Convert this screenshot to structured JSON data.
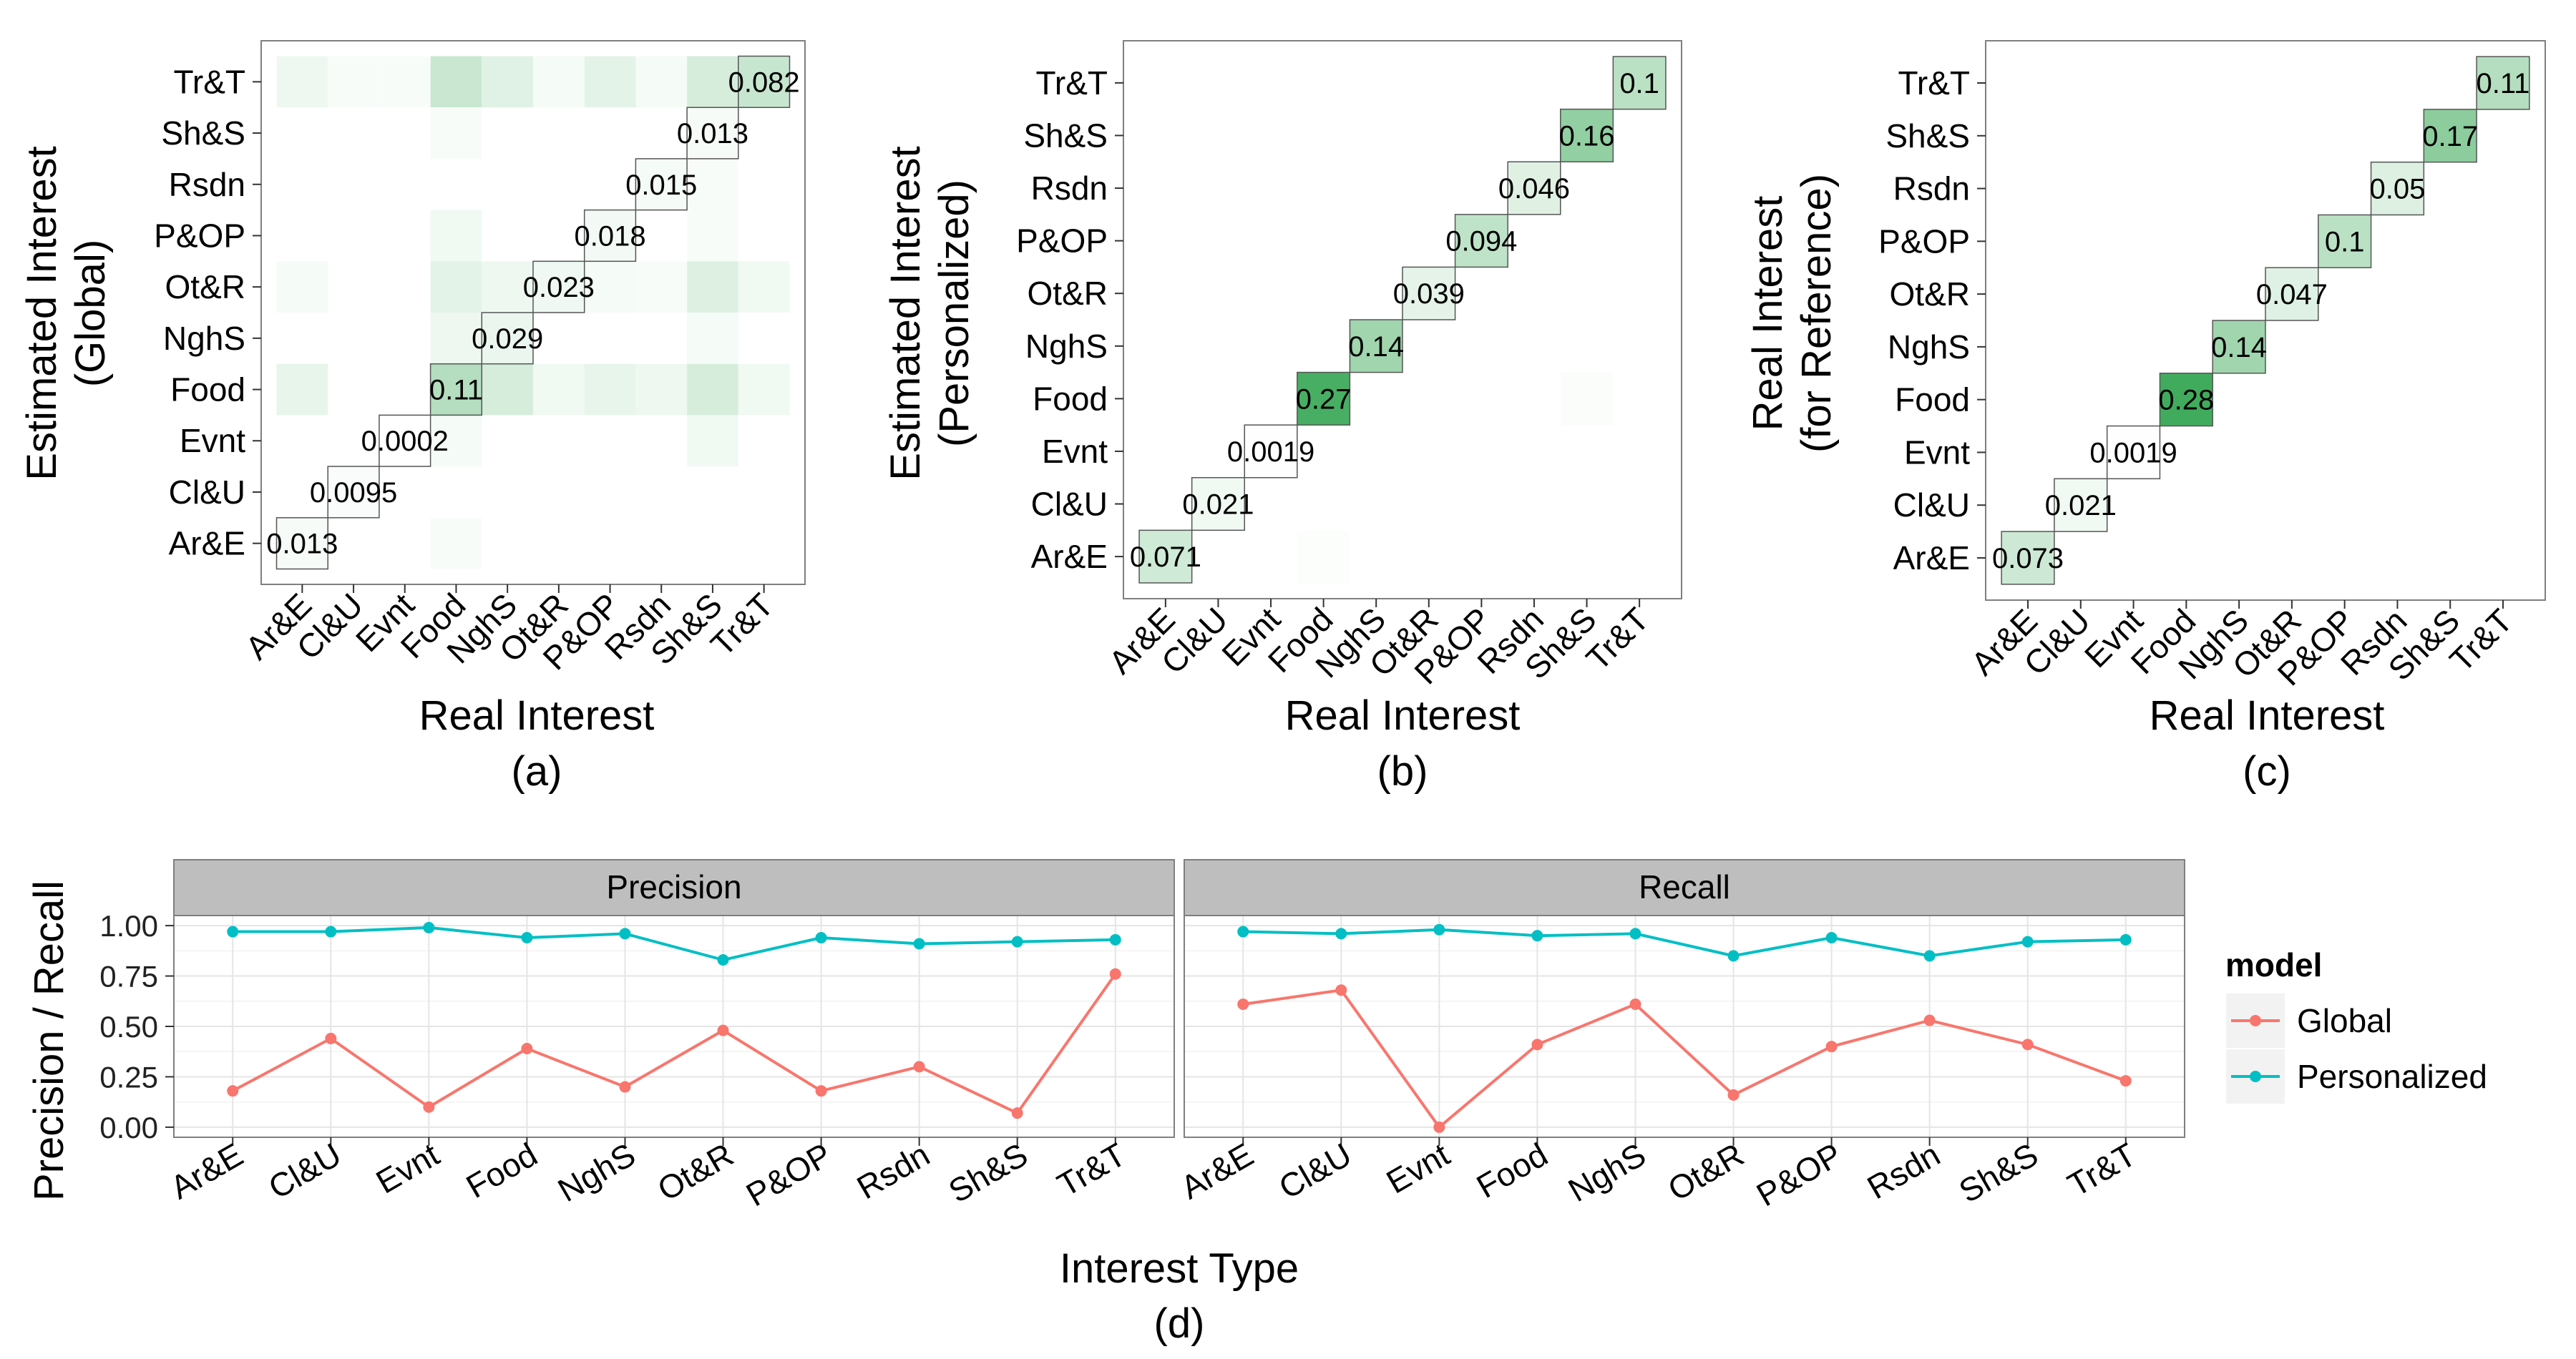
{
  "labels": {
    "a_ylabel_line1": "Estimated Interest",
    "a_ylabel_line2": "(Global)",
    "b_ylabel_line1": "Estimated Interest",
    "b_ylabel_line2": "(Personalized)",
    "c_ylabel_line1": "Real Interest",
    "c_ylabel_line2": "(for Reference)",
    "heatmap_xlabel": "Real Interest",
    "panel_a": "(a)",
    "panel_b": "(b)",
    "panel_c": "(c)",
    "panel_d": "(d)",
    "d_ylabel": "Precision / Recall",
    "d_xlabel": "Interest Type",
    "facet_precision": "Precision",
    "facet_recall": "Recall",
    "legend_title": "model"
  },
  "colors": {
    "global": "#F8766D",
    "personalized": "#00BFC4",
    "heat_low": "#FFFFFF",
    "heat_high": "#41AB5D",
    "strip_bg": "#BEBEBE"
  },
  "chart_data": [
    {
      "type": "heatmap",
      "panel": "(a)",
      "xlabel": "Real Interest",
      "ylabel": "Estimated Interest (Global)",
      "categories": [
        "Ar&E",
        "Cl&U",
        "Evnt",
        "Food",
        "NghS",
        "Ot&R",
        "P&OP",
        "Rsdn",
        "Sh&S",
        "Tr&T"
      ],
      "diagonal_labels": [
        "0.013",
        "0.0095",
        "0.0002",
        "0.11",
        "0.029",
        "0.023",
        "0.018",
        "0.015",
        "0.013",
        "0.082"
      ],
      "diagonal_values": [
        0.013,
        0.0095,
        0.0002,
        0.11,
        0.029,
        0.023,
        0.018,
        0.015,
        0.013,
        0.082
      ],
      "off_diagonal": [
        {
          "x": "Food",
          "y": "Tr&T",
          "value": 0.08
        },
        {
          "x": "NghS",
          "y": "Tr&T",
          "value": 0.045
        },
        {
          "x": "P&OP",
          "y": "Tr&T",
          "value": 0.04
        },
        {
          "x": "Ar&E",
          "y": "Tr&T",
          "value": 0.025
        },
        {
          "x": "Sh&S",
          "y": "Tr&T",
          "value": 0.06
        },
        {
          "x": "Ot&R",
          "y": "Tr&T",
          "value": 0.015
        },
        {
          "x": "Rsdn",
          "y": "Tr&T",
          "value": 0.015
        },
        {
          "x": "Cl&U",
          "y": "Tr&T",
          "value": 0.01
        },
        {
          "x": "Evnt",
          "y": "Tr&T",
          "value": 0.01
        },
        {
          "x": "Ar&E",
          "y": "Food",
          "value": 0.035
        },
        {
          "x": "NghS",
          "y": "Food",
          "value": 0.06
        },
        {
          "x": "Sh&S",
          "y": "Food",
          "value": 0.06
        },
        {
          "x": "P&OP",
          "y": "Food",
          "value": 0.035
        },
        {
          "x": "Ot&R",
          "y": "Food",
          "value": 0.02
        },
        {
          "x": "Rsdn",
          "y": "Food",
          "value": 0.025
        },
        {
          "x": "Tr&T",
          "y": "Food",
          "value": 0.02
        },
        {
          "x": "Food",
          "y": "Ot&R",
          "value": 0.04
        },
        {
          "x": "NghS",
          "y": "Ot&R",
          "value": 0.025
        },
        {
          "x": "Sh&S",
          "y": "Ot&R",
          "value": 0.05
        },
        {
          "x": "Tr&T",
          "y": "Ot&R",
          "value": 0.02
        },
        {
          "x": "P&OP",
          "y": "Ot&R",
          "value": 0.015
        },
        {
          "x": "Rsdn",
          "y": "Ot&R",
          "value": 0.01
        },
        {
          "x": "Ar&E",
          "y": "Ot&R",
          "value": 0.015
        },
        {
          "x": "Food",
          "y": "NghS",
          "value": 0.025
        },
        {
          "x": "Sh&S",
          "y": "NghS",
          "value": 0.015
        },
        {
          "x": "Food",
          "y": "P&OP",
          "value": 0.02
        },
        {
          "x": "Food",
          "y": "Evnt",
          "value": 0.015
        },
        {
          "x": "Sh&S",
          "y": "Evnt",
          "value": 0.02
        },
        {
          "x": "Sh&S",
          "y": "P&OP",
          "value": 0.01
        },
        {
          "x": "Sh&S",
          "y": "Rsdn",
          "value": 0.01
        },
        {
          "x": "Food",
          "y": "Ar&E",
          "value": 0.01
        },
        {
          "x": "Food",
          "y": "Sh&S",
          "value": 0.01
        }
      ]
    },
    {
      "type": "heatmap",
      "panel": "(b)",
      "xlabel": "Real Interest",
      "ylabel": "Estimated Interest (Personalized)",
      "categories": [
        "Ar&E",
        "Cl&U",
        "Evnt",
        "Food",
        "NghS",
        "Ot&R",
        "P&OP",
        "Rsdn",
        "Sh&S",
        "Tr&T"
      ],
      "diagonal_labels": [
        "0.071",
        "0.021",
        "0.0019",
        "0.27",
        "0.14",
        "0.039",
        "0.094",
        "0.046",
        "0.16",
        "0.1"
      ],
      "diagonal_values": [
        0.071,
        0.021,
        0.0019,
        0.27,
        0.14,
        0.039,
        0.094,
        0.046,
        0.16,
        0.1
      ],
      "off_diagonal": [
        {
          "x": "Sh&S",
          "y": "Food",
          "value": 0.008
        },
        {
          "x": "Food",
          "y": "Ar&E",
          "value": 0.005
        }
      ]
    },
    {
      "type": "heatmap",
      "panel": "(c)",
      "xlabel": "Real Interest",
      "ylabel": "Real Interest (for Reference)",
      "categories": [
        "Ar&E",
        "Cl&U",
        "Evnt",
        "Food",
        "NghS",
        "Ot&R",
        "P&OP",
        "Rsdn",
        "Sh&S",
        "Tr&T"
      ],
      "diagonal_labels": [
        "0.073",
        "0.021",
        "0.0019",
        "0.28",
        "0.14",
        "0.047",
        "0.1",
        "0.05",
        "0.17",
        "0.11"
      ],
      "diagonal_values": [
        0.073,
        0.021,
        0.0019,
        0.28,
        0.14,
        0.047,
        0.1,
        0.05,
        0.17,
        0.11
      ],
      "off_diagonal": []
    },
    {
      "type": "line",
      "panel": "(d)",
      "xlabel": "Interest Type",
      "ylabel": "Precision / Recall",
      "ylim": [
        0,
        1
      ],
      "yticks": [
        "0.00",
        "0.25",
        "0.50",
        "0.75",
        "1.00"
      ],
      "facets": [
        "Precision",
        "Recall"
      ],
      "categories": [
        "Ar&E",
        "Cl&U",
        "Evnt",
        "Food",
        "NghS",
        "Ot&R",
        "P&OP",
        "Rsdn",
        "Sh&S",
        "Tr&T"
      ],
      "legend": {
        "title": "model",
        "position": "right",
        "entries": [
          "Global",
          "Personalized"
        ]
      },
      "grid": true,
      "series": {
        "Precision": [
          {
            "name": "Global",
            "values": [
              0.18,
              0.44,
              0.1,
              0.39,
              0.2,
              0.48,
              0.18,
              0.3,
              0.07,
              0.76
            ]
          },
          {
            "name": "Personalized",
            "values": [
              0.97,
              0.97,
              0.99,
              0.94,
              0.96,
              0.83,
              0.94,
              0.91,
              0.92,
              0.93
            ]
          }
        ],
        "Recall": [
          {
            "name": "Global",
            "values": [
              0.61,
              0.68,
              0.0,
              0.41,
              0.61,
              0.16,
              0.4,
              0.53,
              0.41,
              0.23
            ]
          },
          {
            "name": "Personalized",
            "values": [
              0.97,
              0.96,
              0.98,
              0.95,
              0.96,
              0.85,
              0.94,
              0.85,
              0.92,
              0.93
            ]
          }
        ]
      }
    }
  ]
}
